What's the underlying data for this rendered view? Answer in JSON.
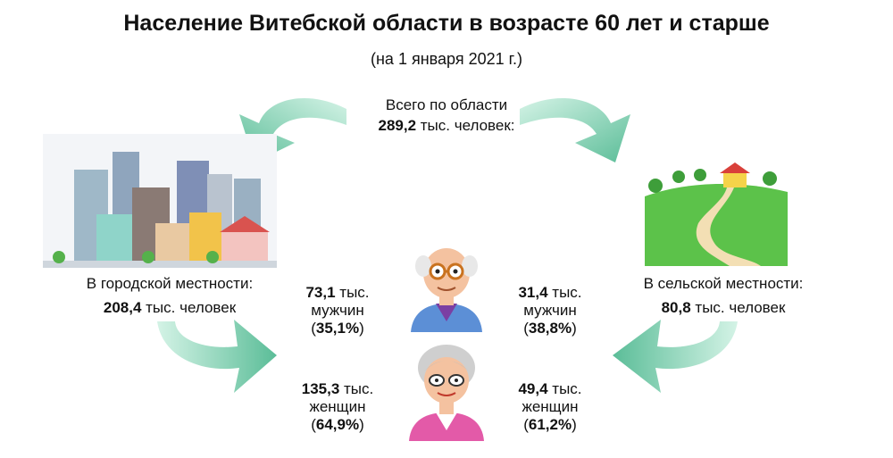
{
  "title": "Население Витебской области в возрасте 60 лет и старше",
  "subtitle": "(на 1 января 2021 г.)",
  "total": {
    "line1": "Всего по области",
    "value": "289,2",
    "unit": " тыс. человек:"
  },
  "urban": {
    "label": "В городской местности:",
    "value": "208,4",
    "unit": " тыс. человек",
    "men": {
      "value": "73,1",
      "unit": " тыс.",
      "word": "мужчин",
      "pct_open": "(",
      "pct": "35,1%",
      "pct_close": ")"
    },
    "women": {
      "value": "135,3",
      "unit": " тыс.",
      "word": "женщин",
      "pct_open": "(",
      "pct": "64,9%",
      "pct_close": ")"
    }
  },
  "rural": {
    "label": "В сельской местности:",
    "value": "80,8",
    "unit": " тыс. человек",
    "men": {
      "value": "31,4",
      "unit": " тыс.",
      "word": "мужчин",
      "pct_open": "(",
      "pct": "38,8%",
      "pct_close": ")"
    },
    "women": {
      "value": "49,4",
      "unit": " тыс.",
      "word": "женщин",
      "pct_open": "(",
      "pct": "61,2%",
      "pct_close": ")"
    }
  },
  "colors": {
    "arrow": "#6fc9a8",
    "arrow_light": "#c8eedf",
    "grass": "#5cc24a",
    "text": "#111111"
  }
}
